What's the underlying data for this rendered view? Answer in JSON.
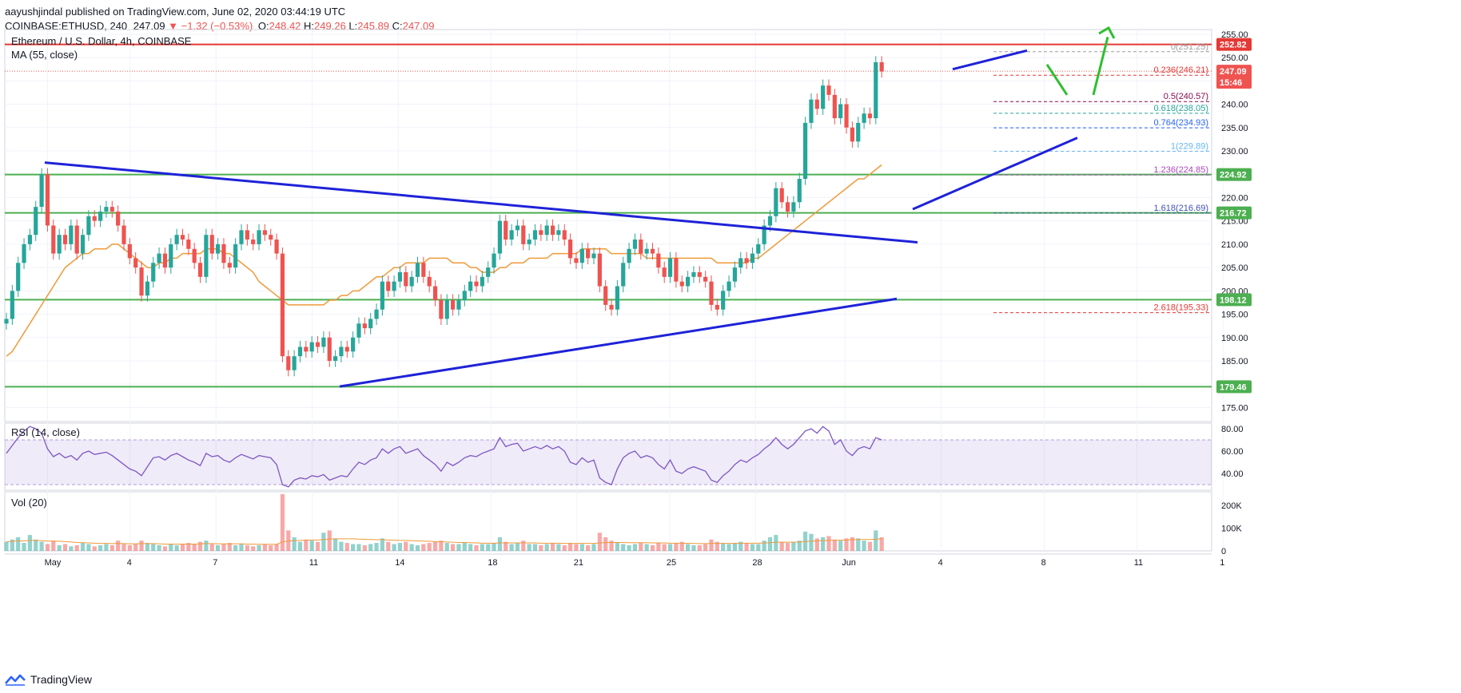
{
  "header": {
    "line1_user": "aayushjindal",
    "line1_rest": "published on TradingView.com, June 02, 2020 03:44:19 UTC",
    "symbol": "COINBASE:ETHUSD, 240",
    "last": "247.09",
    "change": "▼ −1.32 (−0.53%)",
    "o_label": "O:",
    "o_value": "248.42",
    "h_label": "H:",
    "h_value": "249.26",
    "l_label": "L:",
    "l_value": "245.89",
    "c_label": "C:",
    "c_value": "247.09"
  },
  "footer": {
    "brand": "TradingView",
    "logo_icon": "tradingview-logo-icon"
  },
  "colors": {
    "up": "#26a69a",
    "down": "#ef5350",
    "trend": "#1e22d8",
    "support": "#4caf50",
    "resistance": "#e53935",
    "ma": "#ef9a3a",
    "rsi": "#7e57c2",
    "arrow": "#2fbf2f"
  },
  "chart_data": [
    {
      "type": "candlestick",
      "title": "Ethereum / U.S. Dollar, 4h, COINBASE",
      "indicator": "MA (55, close)",
      "ylim": [
        172,
        256
      ],
      "y_ticks": [
        "255.00",
        "250.00",
        "245.00",
        "240.00",
        "235.00",
        "230.00",
        "225.00",
        "220.00",
        "215.00",
        "210.00",
        "205.00",
        "200.00",
        "195.00",
        "190.00",
        "185.00",
        "180.00",
        "175.00"
      ],
      "x_ticks": [
        "May",
        "4",
        "7",
        "11",
        "14",
        "18",
        "21",
        "25",
        "28",
        "Jun",
        "4",
        "8",
        "11",
        "1"
      ],
      "price_tags": [
        {
          "label": "252.82",
          "value": 252.82,
          "color": "#e53935"
        },
        {
          "label": "247.09",
          "value": 247.09,
          "color": "#ef5350"
        },
        {
          "label": "15:46",
          "value": 244.7,
          "color": "#ef5350"
        },
        {
          "label": "224.92",
          "value": 224.92,
          "color": "#4caf50"
        },
        {
          "label": "216.72",
          "value": 216.72,
          "color": "#4caf50"
        },
        {
          "label": "198.12",
          "value": 198.12,
          "color": "#4caf50"
        },
        {
          "label": "179.46",
          "value": 179.46,
          "color": "#4caf50"
        }
      ],
      "horizontal_levels": [
        {
          "value": 252.82,
          "kind": "resistance"
        },
        {
          "value": 224.92,
          "kind": "support"
        },
        {
          "value": 216.72,
          "kind": "support"
        },
        {
          "value": 198.12,
          "kind": "support"
        },
        {
          "value": 179.46,
          "kind": "support"
        }
      ],
      "fibonacci": [
        {
          "label": "0(251.25)",
          "value": 251.25,
          "color": "#9e9e9e"
        },
        {
          "label": "0.236(246.21)",
          "value": 246.21,
          "color": "#e53935"
        },
        {
          "label": "0.5(240.57)",
          "value": 240.57,
          "color": "#880e4f"
        },
        {
          "label": "0.618(238.05)",
          "value": 238.05,
          "color": "#26a69a"
        },
        {
          "label": "0.764(234.93)",
          "value": 234.93,
          "color": "#2962ff"
        },
        {
          "label": "1(229.89)",
          "value": 229.89,
          "color": "#64b5f6"
        },
        {
          "label": "1.236(224.85)",
          "value": 224.85,
          "color": "#ab47bc"
        },
        {
          "label": "1.618(216.69)",
          "value": 216.69,
          "color": "#3f51b5"
        },
        {
          "label": "2.618(195.33)",
          "value": 195.33,
          "color": "#e53935"
        }
      ],
      "series": [
        {
          "name": "ETHUSD",
          "kind": "candles",
          "close": [
            194,
            200,
            206,
            210,
            212,
            218,
            225,
            214,
            208,
            212,
            210,
            214,
            208,
            212,
            216,
            215,
            217,
            218,
            217,
            214,
            210,
            207,
            205,
            199,
            202,
            206,
            208,
            205,
            210,
            212,
            211,
            209,
            206,
            203,
            212,
            208,
            210,
            206,
            205,
            210,
            213,
            211,
            210,
            213,
            212,
            211,
            208,
            186,
            183,
            186,
            188,
            187,
            189,
            188,
            190,
            185,
            186,
            188,
            187,
            190,
            193,
            192,
            194,
            196,
            202,
            200,
            202,
            204,
            201,
            203,
            206,
            203,
            201,
            198,
            194,
            198,
            196,
            198,
            200,
            202,
            201,
            203,
            205,
            208,
            215,
            211,
            213,
            214,
            210,
            211,
            213,
            212,
            214,
            212,
            213,
            211,
            207,
            206,
            209,
            207,
            208,
            201,
            197,
            196,
            201,
            206,
            209,
            211,
            208,
            209,
            208,
            205,
            203,
            207,
            202,
            201,
            203,
            204,
            203,
            202,
            197,
            196,
            200,
            202,
            205,
            207,
            206,
            208,
            210,
            214,
            216,
            222,
            219,
            217,
            219,
            224,
            236,
            241,
            239,
            244,
            242,
            237,
            240,
            235,
            232,
            236,
            238,
            237,
            249,
            247
          ]
        },
        {
          "name": "MA (55, close)",
          "kind": "line",
          "values": [
            186,
            187,
            189,
            191,
            193,
            195,
            197,
            199,
            201,
            203,
            205,
            206,
            207,
            208,
            208,
            209,
            209,
            209,
            210,
            210,
            209,
            208,
            207,
            206,
            205,
            205,
            206,
            206,
            207,
            207,
            208,
            208,
            208,
            208,
            209,
            209,
            209,
            208,
            208,
            207,
            206,
            205,
            204,
            202,
            201,
            200,
            199,
            198,
            197,
            197,
            197,
            197,
            197,
            197,
            197,
            198,
            198,
            199,
            199,
            200,
            200,
            201,
            202,
            203,
            203,
            204,
            205,
            205,
            206,
            206,
            206,
            206,
            207,
            207,
            207,
            207,
            206,
            206,
            206,
            205,
            205,
            204,
            204,
            204,
            205,
            205,
            206,
            206,
            206,
            207,
            207,
            207,
            207,
            208,
            208,
            208,
            208,
            208,
            209,
            209,
            209,
            209,
            209,
            208,
            208,
            208,
            208,
            208,
            208,
            207,
            207,
            207,
            207,
            207,
            207,
            207,
            207,
            207,
            207,
            207,
            207,
            206,
            206,
            206,
            206,
            206,
            206,
            207,
            207,
            208,
            209,
            210,
            211,
            212,
            213,
            214,
            215,
            216,
            217,
            218,
            219,
            220,
            221,
            222,
            223,
            224,
            224,
            225,
            226,
            227
          ]
        }
      ]
    },
    {
      "type": "line",
      "title": "RSI (14, close)",
      "ylim": [
        25,
        85
      ],
      "y_ticks": [
        "80.00",
        "60.00",
        "40.00"
      ],
      "band": [
        30,
        70
      ],
      "series": [
        {
          "name": "RSI",
          "values": [
            58,
            65,
            72,
            78,
            82,
            80,
            76,
            62,
            55,
            58,
            54,
            56,
            52,
            58,
            60,
            57,
            58,
            59,
            56,
            52,
            48,
            44,
            42,
            38,
            46,
            54,
            55,
            52,
            56,
            58,
            55,
            52,
            50,
            47,
            58,
            55,
            56,
            52,
            50,
            54,
            57,
            55,
            53,
            56,
            55,
            54,
            48,
            30,
            28,
            34,
            36,
            35,
            38,
            37,
            39,
            34,
            36,
            38,
            37,
            44,
            50,
            48,
            52,
            54,
            62,
            58,
            62,
            64,
            58,
            60,
            62,
            56,
            52,
            48,
            42,
            50,
            47,
            50,
            54,
            56,
            55,
            58,
            60,
            62,
            72,
            64,
            66,
            67,
            60,
            62,
            64,
            62,
            65,
            62,
            64,
            60,
            50,
            48,
            54,
            50,
            52,
            36,
            32,
            30,
            44,
            54,
            58,
            60,
            54,
            56,
            54,
            48,
            44,
            52,
            42,
            40,
            44,
            46,
            44,
            42,
            34,
            32,
            38,
            42,
            48,
            52,
            50,
            54,
            57,
            62,
            66,
            72,
            66,
            62,
            66,
            72,
            78,
            80,
            76,
            82,
            78,
            66,
            70,
            60,
            56,
            62,
            64,
            62,
            72,
            70
          ]
        }
      ]
    },
    {
      "type": "bar",
      "title": "Vol (20)",
      "ylim": [
        0,
        260
      ],
      "y_ticks": [
        "200K",
        "100K",
        "0"
      ],
      "series": [
        {
          "name": "Vol",
          "values": [
            40,
            50,
            60,
            35,
            70,
            50,
            40,
            30,
            45,
            25,
            30,
            20,
            25,
            35,
            30,
            20,
            25,
            30,
            25,
            45,
            30,
            25,
            30,
            45,
            35,
            30,
            25,
            20,
            30,
            25,
            30,
            35,
            30,
            40,
            45,
            30,
            25,
            30,
            35,
            25,
            30,
            25,
            20,
            25,
            30,
            25,
            30,
            250,
            90,
            60,
            40,
            50,
            45,
            40,
            80,
            90,
            55,
            40,
            35,
            30,
            30,
            25,
            30,
            35,
            55,
            40,
            30,
            35,
            40,
            30,
            25,
            30,
            35,
            40,
            45,
            35,
            30,
            30,
            35,
            30,
            25,
            30,
            30,
            35,
            60,
            40,
            30,
            35,
            45,
            30,
            30,
            25,
            30,
            35,
            30,
            25,
            35,
            30,
            30,
            25,
            30,
            80,
            60,
            45,
            35,
            30,
            25,
            30,
            35,
            30,
            25,
            35,
            30,
            30,
            35,
            40,
            30,
            25,
            25,
            30,
            50,
            40,
            35,
            30,
            35,
            40,
            35,
            30,
            30,
            45,
            60,
            70,
            40,
            35,
            40,
            45,
            85,
            75,
            55,
            60,
            65,
            50,
            45,
            55,
            60,
            55,
            45,
            40,
            90,
            60
          ]
        },
        {
          "name": "Vol MA",
          "values": [
            40,
            42,
            44,
            44,
            46,
            46,
            45,
            43,
            43,
            42,
            41,
            39,
            37,
            36,
            35,
            34,
            33,
            33,
            32,
            33,
            32,
            31,
            31,
            32,
            32,
            32,
            31,
            30,
            30,
            30,
            30,
            30,
            30,
            31,
            32,
            32,
            31,
            31,
            31,
            31,
            31,
            30,
            30,
            29,
            29,
            29,
            29,
            40,
            43,
            45,
            46,
            47,
            48,
            48,
            50,
            52,
            53,
            53,
            53,
            53,
            52,
            51,
            50,
            49,
            49,
            48,
            47,
            46,
            46,
            45,
            44,
            43,
            42,
            41,
            40,
            39,
            38,
            37,
            37,
            36,
            35,
            34,
            34,
            34,
            35,
            35,
            35,
            35,
            35,
            35,
            35,
            34,
            34,
            34,
            34,
            33,
            33,
            33,
            33,
            33,
            33,
            35,
            36,
            37,
            37,
            37,
            36,
            36,
            36,
            36,
            35,
            35,
            35,
            34,
            34,
            34,
            33,
            33,
            32,
            32,
            33,
            33,
            33,
            33,
            33,
            34,
            34,
            34,
            34,
            35,
            36,
            38,
            38,
            38,
            38,
            39,
            41,
            43,
            44,
            45,
            46,
            47,
            47,
            48,
            49,
            50,
            50,
            50,
            52,
            53
          ]
        }
      ]
    }
  ]
}
